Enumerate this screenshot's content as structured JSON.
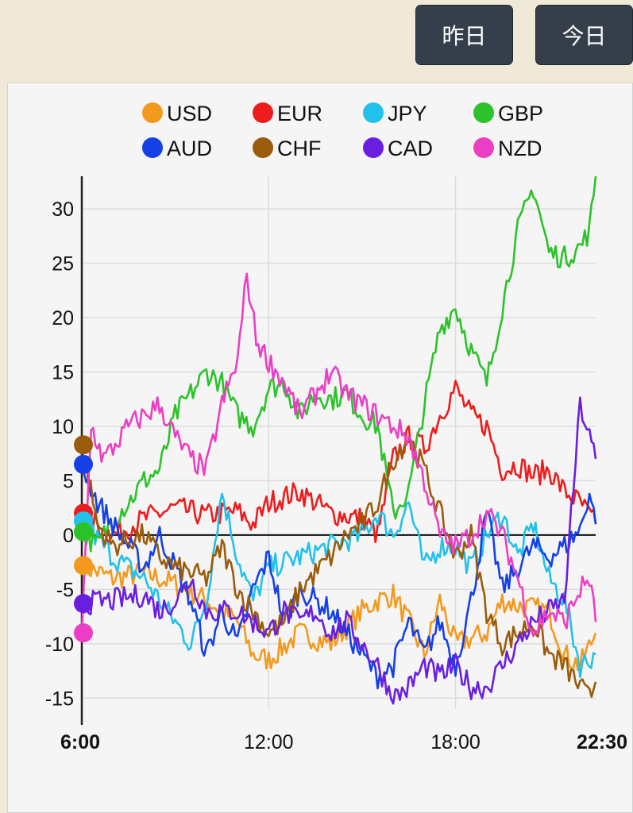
{
  "buttons": {
    "yesterday": "昨日",
    "today": "今日"
  },
  "chart_data": {
    "type": "line",
    "title": "",
    "xlabel": "",
    "ylabel": "",
    "x_range_hours": [
      6,
      22.5
    ],
    "ylim": [
      -16,
      33
    ],
    "yticks": [
      30,
      25,
      20,
      15,
      10,
      5,
      0,
      -5,
      -10,
      -15
    ],
    "xticks": [
      {
        "label": "6:00",
        "hour": 6,
        "bold": true
      },
      {
        "label": "12:00",
        "hour": 12,
        "bold": false
      },
      {
        "label": "18:00",
        "hour": 18,
        "bold": false
      },
      {
        "label": "22:30",
        "hour": 22.5,
        "bold": true
      }
    ],
    "legend_position": "top",
    "series": [
      {
        "name": "USD",
        "color": "#f39a1e",
        "start": -2.8,
        "points": [
          [
            6,
            -2.8
          ],
          [
            7,
            -4
          ],
          [
            8,
            -3.5
          ],
          [
            9,
            -4.5
          ],
          [
            10,
            -6
          ],
          [
            11,
            -8
          ],
          [
            11.5,
            -11
          ],
          [
            12,
            -11.5
          ],
          [
            13,
            -9
          ],
          [
            14,
            -10
          ],
          [
            15,
            -7
          ],
          [
            15.5,
            -6
          ],
          [
            16,
            -5.5
          ],
          [
            16.5,
            -8
          ],
          [
            17,
            -11
          ],
          [
            17.5,
            -6
          ],
          [
            18,
            -10
          ],
          [
            19,
            -9
          ],
          [
            19.5,
            -6
          ],
          [
            20,
            -6.5
          ],
          [
            21,
            -7
          ],
          [
            21.5,
            -11
          ],
          [
            22,
            -12
          ],
          [
            22.5,
            -9
          ]
        ]
      },
      {
        "name": "EUR",
        "color": "#ee1c1c",
        "start": 2,
        "points": [
          [
            6,
            2
          ],
          [
            7,
            0
          ],
          [
            8,
            1.5
          ],
          [
            9,
            2.5
          ],
          [
            10,
            1.8
          ],
          [
            11,
            2.2
          ],
          [
            11.5,
            1
          ],
          [
            12,
            3
          ],
          [
            13,
            4
          ],
          [
            14,
            2
          ],
          [
            15,
            1.5
          ],
          [
            15.5,
            0
          ],
          [
            16,
            7
          ],
          [
            16.5,
            9
          ],
          [
            17,
            8
          ],
          [
            17.5,
            11
          ],
          [
            18,
            13.5
          ],
          [
            18.5,
            11
          ],
          [
            19,
            10
          ],
          [
            19.5,
            6
          ],
          [
            20,
            6.5
          ],
          [
            20.5,
            5.5
          ],
          [
            21,
            6
          ],
          [
            21.5,
            4
          ],
          [
            22,
            3
          ],
          [
            22.5,
            1
          ]
        ]
      },
      {
        "name": "JPY",
        "color": "#22c1ec",
        "start": 1.3,
        "points": [
          [
            6,
            1.3
          ],
          [
            7,
            -2
          ],
          [
            8,
            -4
          ],
          [
            8.5,
            -6
          ],
          [
            9,
            -8
          ],
          [
            9.5,
            -10
          ],
          [
            10,
            -6
          ],
          [
            10.5,
            4
          ],
          [
            11,
            -2
          ],
          [
            11.5,
            -6
          ],
          [
            12,
            -3
          ],
          [
            13,
            -2
          ],
          [
            14,
            -1
          ],
          [
            15,
            0
          ],
          [
            15.5,
            2
          ],
          [
            16,
            0
          ],
          [
            16.5,
            3
          ],
          [
            17,
            -3
          ],
          [
            17.5,
            -1
          ],
          [
            18,
            -1
          ],
          [
            18.5,
            -3
          ],
          [
            19,
            0
          ],
          [
            19.5,
            2
          ],
          [
            20,
            -2
          ],
          [
            20.5,
            1
          ],
          [
            21,
            -4
          ],
          [
            21.5,
            -6
          ],
          [
            22,
            -12
          ],
          [
            22.5,
            -11
          ]
        ]
      },
      {
        "name": "GBP",
        "color": "#2cc22a",
        "start": 0.3,
        "points": [
          [
            6,
            0.3
          ],
          [
            6.5,
            -1
          ],
          [
            7,
            1.5
          ],
          [
            7.5,
            3
          ],
          [
            8,
            5
          ],
          [
            8.5,
            6
          ],
          [
            9,
            11
          ],
          [
            9.5,
            13
          ],
          [
            10,
            15
          ],
          [
            10.5,
            14
          ],
          [
            11,
            11
          ],
          [
            11.5,
            10
          ],
          [
            12,
            13.5
          ],
          [
            12.5,
            14
          ],
          [
            13,
            11
          ],
          [
            13.5,
            13
          ],
          [
            14,
            12.5
          ],
          [
            14.5,
            13
          ],
          [
            15,
            11
          ],
          [
            15.5,
            10
          ],
          [
            16,
            2
          ],
          [
            16.5,
            4
          ],
          [
            17,
            12
          ],
          [
            17.5,
            19
          ],
          [
            18,
            21
          ],
          [
            18.5,
            17
          ],
          [
            19,
            14
          ],
          [
            19.5,
            21
          ],
          [
            20,
            28
          ],
          [
            20.5,
            32
          ],
          [
            21,
            26
          ],
          [
            21.5,
            25.5
          ],
          [
            22,
            26.5
          ],
          [
            22.3,
            28
          ],
          [
            22.5,
            33
          ]
        ]
      },
      {
        "name": "AUD",
        "color": "#1540e6",
        "start": 6.5,
        "points": [
          [
            6,
            6.5
          ],
          [
            6.5,
            3
          ],
          [
            7,
            1
          ],
          [
            7.5,
            -1
          ],
          [
            8,
            -3
          ],
          [
            8.5,
            0
          ],
          [
            9,
            -3
          ],
          [
            9.5,
            -6
          ],
          [
            10,
            -11
          ],
          [
            10.5,
            -7
          ],
          [
            11,
            -10
          ],
          [
            11.5,
            -5
          ],
          [
            12,
            -2
          ],
          [
            12.5,
            -8
          ],
          [
            13,
            -5
          ],
          [
            14,
            -7
          ],
          [
            14.5,
            -9
          ],
          [
            15,
            -11
          ],
          [
            15.5,
            -13
          ],
          [
            16,
            -12
          ],
          [
            16.5,
            -8
          ],
          [
            17,
            -11
          ],
          [
            17.5,
            -8
          ],
          [
            18,
            -12
          ],
          [
            18.5,
            -6
          ],
          [
            19,
            2
          ],
          [
            19.5,
            -5
          ],
          [
            20,
            -3
          ],
          [
            20.5,
            -1
          ],
          [
            21,
            -2
          ],
          [
            21.5,
            -1
          ],
          [
            22,
            0.5
          ],
          [
            22.3,
            4
          ],
          [
            22.5,
            1
          ]
        ]
      },
      {
        "name": "CHF",
        "color": "#9a5c0a",
        "start": 8.3,
        "points": [
          [
            6,
            8.3
          ],
          [
            6.5,
            1
          ],
          [
            7,
            -1
          ],
          [
            8,
            0
          ],
          [
            8.5,
            -2
          ],
          [
            9,
            -3
          ],
          [
            10,
            -4
          ],
          [
            10.5,
            -1
          ],
          [
            11,
            -5
          ],
          [
            11.5,
            -7
          ],
          [
            12,
            -9
          ],
          [
            12.5,
            -8
          ],
          [
            13,
            -5
          ],
          [
            14,
            -2
          ],
          [
            14.5,
            0
          ],
          [
            15,
            1
          ],
          [
            15.5,
            3
          ],
          [
            16,
            7
          ],
          [
            16.5,
            9
          ],
          [
            17,
            6
          ],
          [
            17.5,
            2
          ],
          [
            18,
            -2
          ],
          [
            18.5,
            0
          ],
          [
            19,
            -7
          ],
          [
            19.5,
            -10
          ],
          [
            20,
            -9
          ],
          [
            20.5,
            -8
          ],
          [
            21,
            -11
          ],
          [
            21.5,
            -12
          ],
          [
            22,
            -14
          ],
          [
            22.3,
            -15
          ],
          [
            22.5,
            -13.5
          ]
        ]
      },
      {
        "name": "CAD",
        "color": "#6a1fe0",
        "start": -6.3,
        "points": [
          [
            6,
            -6.3
          ],
          [
            7,
            -6
          ],
          [
            8,
            -5.5
          ],
          [
            8.5,
            -7
          ],
          [
            9,
            -6
          ],
          [
            9.5,
            -4
          ],
          [
            10,
            -7
          ],
          [
            11,
            -7
          ],
          [
            11.5,
            -8
          ],
          [
            12,
            -9
          ],
          [
            12.5,
            -7
          ],
          [
            13,
            -8
          ],
          [
            13.5,
            -7
          ],
          [
            14,
            -9
          ],
          [
            14.5,
            -8
          ],
          [
            15,
            -10
          ],
          [
            15.5,
            -12
          ],
          [
            16,
            -15
          ],
          [
            16.5,
            -14
          ],
          [
            17,
            -12
          ],
          [
            17.5,
            -13
          ],
          [
            18,
            -12
          ],
          [
            18.5,
            -14
          ],
          [
            19,
            -14
          ],
          [
            19.5,
            -12
          ],
          [
            20,
            -10
          ],
          [
            20.5,
            -8
          ],
          [
            21,
            -7
          ],
          [
            21.5,
            -6
          ],
          [
            22,
            12
          ],
          [
            22.3,
            9
          ],
          [
            22.5,
            7
          ]
        ]
      },
      {
        "name": "NZD",
        "color": "#ec3ec4",
        "start": -9,
        "points": [
          [
            6,
            -9
          ],
          [
            6.3,
            10
          ],
          [
            6.7,
            7
          ],
          [
            7,
            8
          ],
          [
            7.5,
            10
          ],
          [
            8,
            11
          ],
          [
            8.5,
            12
          ],
          [
            9,
            9
          ],
          [
            9.5,
            7
          ],
          [
            10,
            6
          ],
          [
            10.5,
            12
          ],
          [
            11,
            16
          ],
          [
            11.3,
            24
          ],
          [
            11.6,
            18
          ],
          [
            12,
            16
          ],
          [
            12.5,
            14
          ],
          [
            13,
            11
          ],
          [
            13.5,
            13
          ],
          [
            14,
            15
          ],
          [
            14.5,
            13
          ],
          [
            15,
            12
          ],
          [
            15.5,
            11
          ],
          [
            16,
            10
          ],
          [
            16.5,
            9
          ],
          [
            17,
            5
          ],
          [
            17.5,
            0
          ],
          [
            18,
            -1
          ],
          [
            18.5,
            0
          ],
          [
            19,
            2
          ],
          [
            19.5,
            0
          ],
          [
            20,
            -4
          ],
          [
            20.5,
            -9
          ],
          [
            21,
            -7
          ],
          [
            21.5,
            -8
          ],
          [
            22,
            -5
          ],
          [
            22.3,
            -4
          ],
          [
            22.5,
            -8
          ]
        ]
      }
    ]
  }
}
